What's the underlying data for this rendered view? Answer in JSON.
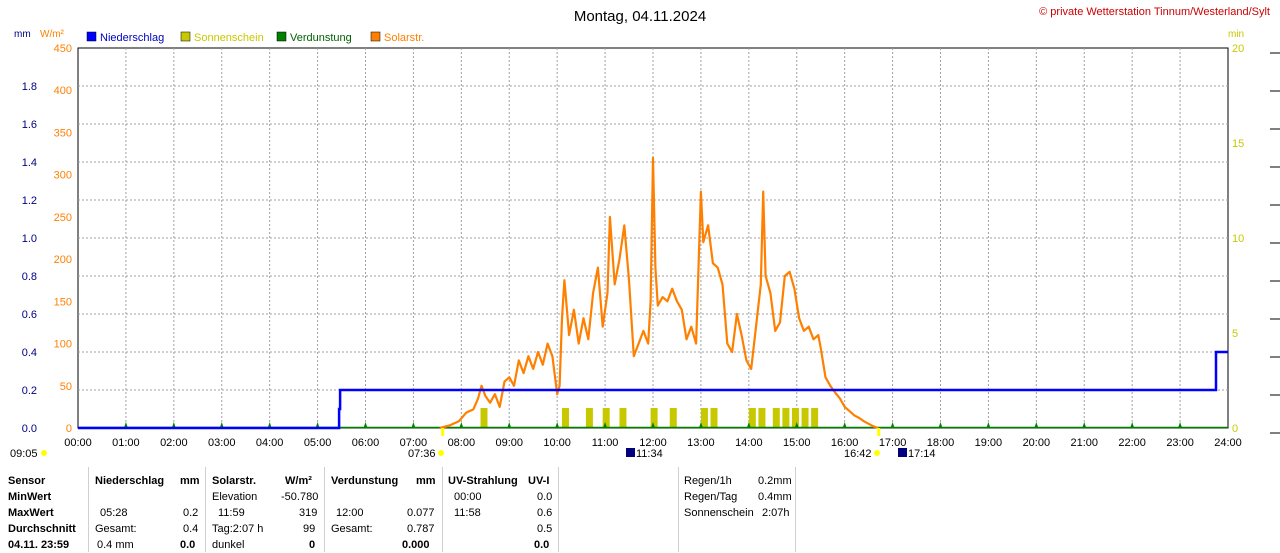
{
  "header": {
    "title": "Montag, 04.11.2024",
    "credit": "© private Wetterstation Tinnum/Westerland/Sylt",
    "left_units": "mm",
    "left_units2": "W/m²",
    "right_units": "min"
  },
  "colors": {
    "precip": "#0000ff",
    "sun": "#c8c800",
    "evap": "#008000",
    "solar": "#ff8000",
    "grid": "#a0a0a0",
    "axis_left_mm": "#000080",
    "axis_left_w": "#ff8000",
    "axis_right": "#c8c800"
  },
  "chart_data": {
    "type": "line",
    "title": "Montag, 04.11.2024",
    "legend": [
      "Niederschlag",
      "Sonnenschein",
      "Verdunstung",
      "Solarstr."
    ],
    "x_ticks": [
      "00:00",
      "01:00",
      "02:00",
      "03:00",
      "04:00",
      "05:00",
      "06:00",
      "07:00",
      "08:00",
      "09:00",
      "10:00",
      "11:00",
      "12:00",
      "13:00",
      "14:00",
      "15:00",
      "16:00",
      "17:00",
      "18:00",
      "19:00",
      "20:00",
      "21:00",
      "22:00",
      "23:00",
      "24:00"
    ],
    "y_mm_ticks": [
      "0.0",
      "0.2",
      "0.4",
      "0.6",
      "0.8",
      "1.0",
      "1.2",
      "1.4",
      "1.6",
      "1.8"
    ],
    "y_mm_range": [
      0,
      2.0
    ],
    "y_w_ticks": [
      "0",
      "50",
      "100",
      "150",
      "200",
      "250",
      "300",
      "350",
      "400",
      "450"
    ],
    "y_w_range": [
      0,
      450
    ],
    "y_min_ticks": [
      "0",
      "5",
      "10",
      "15",
      "20"
    ],
    "y_min_range": [
      0,
      20
    ],
    "sun_marks": {
      "sunrise_label": "07:36",
      "sunset_label": "16:42",
      "moonrise_label": "09:05",
      "noon_label": "11:34",
      "moonset_label": "17:14"
    },
    "series": [
      {
        "name": "Niederschlag",
        "unit": "mm",
        "points": [
          [
            0,
            0
          ],
          [
            5.45,
            0
          ],
          [
            5.45,
            0.1
          ],
          [
            5.47,
            0.1
          ],
          [
            5.47,
            0.2
          ],
          [
            23.75,
            0.2
          ],
          [
            23.75,
            0.4
          ],
          [
            24,
            0.4
          ]
        ]
      },
      {
        "name": "Solarstr.",
        "unit": "W/m²",
        "points": [
          [
            7.55,
            0
          ],
          [
            7.75,
            3
          ],
          [
            7.95,
            8
          ],
          [
            8.1,
            18
          ],
          [
            8.25,
            22
          ],
          [
            8.35,
            35
          ],
          [
            8.42,
            50
          ],
          [
            8.5,
            38
          ],
          [
            8.6,
            30
          ],
          [
            8.7,
            40
          ],
          [
            8.8,
            25
          ],
          [
            8.9,
            55
          ],
          [
            9.0,
            60
          ],
          [
            9.1,
            50
          ],
          [
            9.2,
            80
          ],
          [
            9.3,
            65
          ],
          [
            9.4,
            85
          ],
          [
            9.5,
            70
          ],
          [
            9.6,
            90
          ],
          [
            9.7,
            75
          ],
          [
            9.8,
            100
          ],
          [
            9.9,
            85
          ],
          [
            10.0,
            40
          ],
          [
            10.05,
            50
          ],
          [
            10.1,
            130
          ],
          [
            10.15,
            175
          ],
          [
            10.25,
            110
          ],
          [
            10.35,
            140
          ],
          [
            10.45,
            100
          ],
          [
            10.55,
            130
          ],
          [
            10.65,
            105
          ],
          [
            10.75,
            160
          ],
          [
            10.85,
            190
          ],
          [
            10.95,
            120
          ],
          [
            11.05,
            160
          ],
          [
            11.1,
            250
          ],
          [
            11.2,
            170
          ],
          [
            11.3,
            200
          ],
          [
            11.4,
            240
          ],
          [
            11.5,
            175
          ],
          [
            11.6,
            85
          ],
          [
            11.7,
            100
          ],
          [
            11.8,
            115
          ],
          [
            11.9,
            100
          ],
          [
            11.95,
            150
          ],
          [
            12.0,
            320
          ],
          [
            12.05,
            190
          ],
          [
            12.1,
            145
          ],
          [
            12.2,
            155
          ],
          [
            12.3,
            150
          ],
          [
            12.4,
            165
          ],
          [
            12.5,
            150
          ],
          [
            12.6,
            140
          ],
          [
            12.7,
            105
          ],
          [
            12.8,
            120
          ],
          [
            12.9,
            100
          ],
          [
            13.0,
            280
          ],
          [
            13.05,
            220
          ],
          [
            13.15,
            240
          ],
          [
            13.25,
            195
          ],
          [
            13.35,
            190
          ],
          [
            13.45,
            170
          ],
          [
            13.55,
            100
          ],
          [
            13.65,
            90
          ],
          [
            13.75,
            135
          ],
          [
            13.85,
            110
          ],
          [
            13.95,
            80
          ],
          [
            14.05,
            70
          ],
          [
            14.15,
            120
          ],
          [
            14.25,
            170
          ],
          [
            14.3,
            280
          ],
          [
            14.35,
            180
          ],
          [
            14.45,
            160
          ],
          [
            14.55,
            115
          ],
          [
            14.65,
            125
          ],
          [
            14.75,
            180
          ],
          [
            14.85,
            185
          ],
          [
            14.95,
            165
          ],
          [
            15.05,
            130
          ],
          [
            15.15,
            115
          ],
          [
            15.25,
            120
          ],
          [
            15.35,
            105
          ],
          [
            15.45,
            110
          ],
          [
            15.5,
            95
          ],
          [
            15.6,
            60
          ],
          [
            15.7,
            50
          ],
          [
            15.8,
            42
          ],
          [
            15.9,
            35
          ],
          [
            16.0,
            25
          ],
          [
            16.1,
            20
          ],
          [
            16.2,
            15
          ],
          [
            16.3,
            12
          ],
          [
            16.4,
            8
          ],
          [
            16.5,
            5
          ],
          [
            16.6,
            2
          ],
          [
            16.7,
            0
          ]
        ]
      },
      {
        "name": "Sonnenschein",
        "unit": "min",
        "bars": [
          [
            8.4,
            1
          ],
          [
            10.1,
            1
          ],
          [
            10.6,
            1
          ],
          [
            10.95,
            1
          ],
          [
            11.3,
            1
          ],
          [
            11.95,
            1
          ],
          [
            12.35,
            1
          ],
          [
            13.0,
            1
          ],
          [
            13.2,
            1
          ],
          [
            14.0,
            1
          ],
          [
            14.2,
            1
          ],
          [
            14.5,
            1
          ],
          [
            14.7,
            1
          ],
          [
            14.9,
            1
          ],
          [
            15.1,
            1
          ],
          [
            15.3,
            1
          ]
        ]
      },
      {
        "name": "Verdunstung",
        "unit": "mm",
        "markers": [
          1,
          2,
          3,
          4,
          5,
          6,
          7,
          8,
          9,
          10,
          11,
          12,
          13,
          14,
          15,
          16,
          17,
          18,
          19,
          20,
          21,
          22,
          23
        ]
      }
    ]
  },
  "table": {
    "col1_header": "Sensor",
    "rows_labels": [
      "MinWert",
      "MaxWert",
      "Durchschnitt",
      "04.11. 23:59"
    ],
    "niederschlag": {
      "header": "Niederschlag",
      "unit": "mm",
      "r2_time": "05:28",
      "r2_val": "0.2",
      "r3_label": "Gesamt:",
      "r3_val": "0.4",
      "r4_label": "0.4 mm",
      "r4_val": "0.0"
    },
    "solar": {
      "header": "Solarstr.",
      "unit": "W/m²",
      "r1_label": "Elevation",
      "r1_val": "-50.780",
      "r2_time": "11:59",
      "r2_val": "319",
      "r3_label": "Tag:2:07 h",
      "r3_val": "99",
      "r4_label": "dunkel",
      "r4_val": "0"
    },
    "evap": {
      "header": "Verdunstung",
      "unit": "mm",
      "r2_time": "12:00",
      "r2_val": "0.077",
      "r3_label": "Gesamt:",
      "r3_val": "0.787",
      "r4_val": "0.000"
    },
    "uv": {
      "header": "UV-Strahlung",
      "unit": "UV-I",
      "r1_time": "00:00",
      "r1_val": "0.0",
      "r2_time": "11:58",
      "r2_val": "0.6",
      "r3_val": "0.5",
      "r4_val": "0.0"
    },
    "summary": {
      "regen1h_label": "Regen/1h",
      "regen1h_val": "0.2mm",
      "regentag_label": "Regen/Tag",
      "regentag_val": "0.4mm",
      "sonne_label": "Sonnenschein",
      "sonne_val": "2:07h"
    }
  }
}
